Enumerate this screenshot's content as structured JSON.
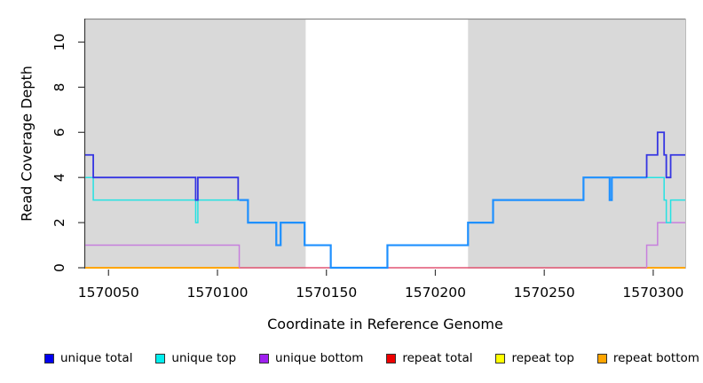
{
  "chart_data": {
    "type": "line",
    "title": "",
    "xlabel": "Coordinate in Reference Genome",
    "ylabel": "Read Coverage Depth",
    "xlim": [
      1570039.3,
      1570314.7
    ],
    "ylim": [
      0,
      11.04
    ],
    "x_ticks": [
      1570050,
      1570100,
      1570150,
      1570200,
      1570250,
      1570300
    ],
    "y_ticks": [
      0,
      2,
      4,
      6,
      8,
      10
    ],
    "grid": false,
    "legend_position": "bottom",
    "shade_color": "#d9d9d9",
    "top_rule_color": "#8a8a8a",
    "axis_color": "#3a3a3a",
    "right_border_color": "#bbbbbb",
    "shaded_regions": [
      {
        "x1": 1570039.3,
        "x2": 1570140.5
      },
      {
        "x1": 1570215.0,
        "x2": 1570314.7
      }
    ],
    "series": [
      {
        "name": "unique total",
        "color": "#0000ee",
        "end_x": 1570314.7,
        "steps": [
          [
            1570039,
            5
          ],
          [
            1570043,
            4
          ],
          [
            1570090,
            3
          ],
          [
            1570091,
            4
          ],
          [
            1570110,
            3
          ],
          [
            1570114,
            2
          ],
          [
            1570127,
            1
          ],
          [
            1570129,
            2
          ],
          [
            1570140,
            1
          ],
          [
            1570152,
            0
          ],
          [
            1570178,
            1
          ],
          [
            1570215,
            2
          ],
          [
            1570226,
            3
          ],
          [
            1570268,
            4
          ],
          [
            1570280,
            3
          ],
          [
            1570281,
            4
          ],
          [
            1570297,
            5
          ],
          [
            1570302,
            6
          ],
          [
            1570305,
            5
          ],
          [
            1570306,
            4
          ],
          [
            1570308,
            5
          ]
        ]
      },
      {
        "name": "unique top",
        "color": "#00eeee",
        "end_x": 1570314.7,
        "steps": [
          [
            1570039,
            4
          ],
          [
            1570043,
            3
          ],
          [
            1570090,
            2
          ],
          [
            1570091,
            3
          ],
          [
            1570114,
            2
          ],
          [
            1570127,
            1
          ],
          [
            1570129,
            2
          ],
          [
            1570140,
            1
          ],
          [
            1570152,
            0
          ],
          [
            1570178,
            1
          ],
          [
            1570215,
            2
          ],
          [
            1570226,
            3
          ],
          [
            1570268,
            4
          ],
          [
            1570280,
            3
          ],
          [
            1570281,
            4
          ],
          [
            1570305,
            3
          ],
          [
            1570306,
            2
          ],
          [
            1570308,
            3
          ]
        ]
      },
      {
        "name": "unique bottom",
        "color": "#a020f0",
        "end_x": 1570314.7,
        "steps": [
          [
            1570039,
            1
          ],
          [
            1570110,
            0
          ],
          [
            1570297,
            1
          ],
          [
            1570302,
            2
          ]
        ]
      },
      {
        "name": "repeat total",
        "color": "#ee0000",
        "end_x": 1570314.7,
        "steps": [
          [
            1570039,
            0
          ]
        ]
      },
      {
        "name": "repeat top",
        "color": "#ffff00",
        "end_x": 1570314.7,
        "steps": [
          [
            1570039,
            0
          ]
        ]
      },
      {
        "name": "repeat bottom",
        "color": "#ffa500",
        "end_x": 1570314.7,
        "steps": [
          [
            1570039,
            0
          ]
        ]
      }
    ],
    "render_polylines": [
      {
        "name": "baseline-mid-crimson",
        "color": "#e25573",
        "w": 1.6,
        "pts": [
          [
            1570110,
            0
          ],
          [
            1570297,
            0
          ]
        ]
      },
      {
        "name": "baseline-left-orange",
        "color": "#ffa500",
        "w": 2,
        "pts": [
          [
            1570039.3,
            0
          ],
          [
            1570110,
            0
          ]
        ]
      },
      {
        "name": "baseline-right-orange",
        "color": "#ffa500",
        "w": 2,
        "pts": [
          [
            1570297,
            0
          ],
          [
            1570314.7,
            0
          ]
        ]
      },
      {
        "name": "unique-bottom-left",
        "color": "#c77fdd",
        "w": 1.5,
        "pts": [
          [
            1570039.3,
            1
          ],
          [
            1570110,
            1
          ],
          [
            1570110,
            0
          ]
        ]
      },
      {
        "name": "unique-bottom-right",
        "color": "#c77fdd",
        "w": 1.5,
        "pts": [
          [
            1570297,
            0
          ],
          [
            1570297,
            1
          ],
          [
            1570302,
            1
          ],
          [
            1570302,
            2
          ],
          [
            1570314.7,
            2
          ]
        ]
      },
      {
        "name": "unique-top-left",
        "color": "#25e2e2",
        "w": 1.5,
        "pts": [
          [
            1570039.3,
            4
          ],
          [
            1570043,
            4
          ],
          [
            1570043,
            3
          ],
          [
            1570090,
            3
          ],
          [
            1570090,
            2
          ],
          [
            1570091,
            2
          ],
          [
            1570091,
            3
          ],
          [
            1570110,
            3
          ]
        ]
      },
      {
        "name": "unique-top-right",
        "color": "#25e2e2",
        "w": 1.5,
        "pts": [
          [
            1570297,
            4
          ],
          [
            1570305,
            4
          ],
          [
            1570305,
            3
          ],
          [
            1570306,
            3
          ],
          [
            1570306,
            2
          ],
          [
            1570308,
            2
          ],
          [
            1570308,
            3
          ],
          [
            1570314.7,
            3
          ]
        ]
      },
      {
        "name": "unique-total-merged",
        "color": "#1e90ff",
        "w": 2.2,
        "pts": [
          [
            1570110,
            3
          ],
          [
            1570114,
            3
          ],
          [
            1570114,
            2
          ],
          [
            1570127,
            2
          ],
          [
            1570127,
            1
          ],
          [
            1570129,
            1
          ],
          [
            1570129,
            2
          ],
          [
            1570140,
            2
          ],
          [
            1570140,
            1
          ],
          [
            1570152,
            1
          ],
          [
            1570152,
            0
          ],
          [
            1570178,
            0
          ],
          [
            1570178,
            1
          ],
          [
            1570215,
            1
          ],
          [
            1570215,
            2
          ],
          [
            1570226.5,
            2
          ],
          [
            1570226.5,
            3
          ],
          [
            1570268,
            3
          ],
          [
            1570268,
            4
          ],
          [
            1570280,
            4
          ],
          [
            1570280,
            3
          ],
          [
            1570281,
            3
          ],
          [
            1570281,
            4
          ],
          [
            1570297,
            4
          ]
        ]
      },
      {
        "name": "unique-total-left",
        "color": "#3535e2",
        "w": 1.8,
        "pts": [
          [
            1570039.3,
            5
          ],
          [
            1570043,
            5
          ],
          [
            1570043,
            4
          ],
          [
            1570090,
            4
          ],
          [
            1570090,
            3
          ],
          [
            1570091,
            3
          ],
          [
            1570091,
            4
          ],
          [
            1570109.5,
            4
          ],
          [
            1570109.5,
            3
          ]
        ]
      },
      {
        "name": "unique-total-right",
        "color": "#3535e2",
        "w": 1.8,
        "pts": [
          [
            1570297,
            4
          ],
          [
            1570297,
            5
          ],
          [
            1570302,
            5
          ],
          [
            1570302,
            6
          ],
          [
            1570305,
            6
          ],
          [
            1570305,
            5
          ],
          [
            1570306,
            5
          ],
          [
            1570306,
            4
          ],
          [
            1570308,
            4
          ],
          [
            1570308,
            5
          ],
          [
            1570314.7,
            5
          ]
        ]
      }
    ],
    "legend": [
      {
        "label": "unique total",
        "color": "#0000ee"
      },
      {
        "label": "unique top",
        "color": "#00eeee"
      },
      {
        "label": "unique bottom",
        "color": "#a020f0"
      },
      {
        "label": "repeat total",
        "color": "#ee0000"
      },
      {
        "label": "repeat top",
        "color": "#ffff00"
      },
      {
        "label": "repeat bottom",
        "color": "#ffa500"
      }
    ]
  }
}
